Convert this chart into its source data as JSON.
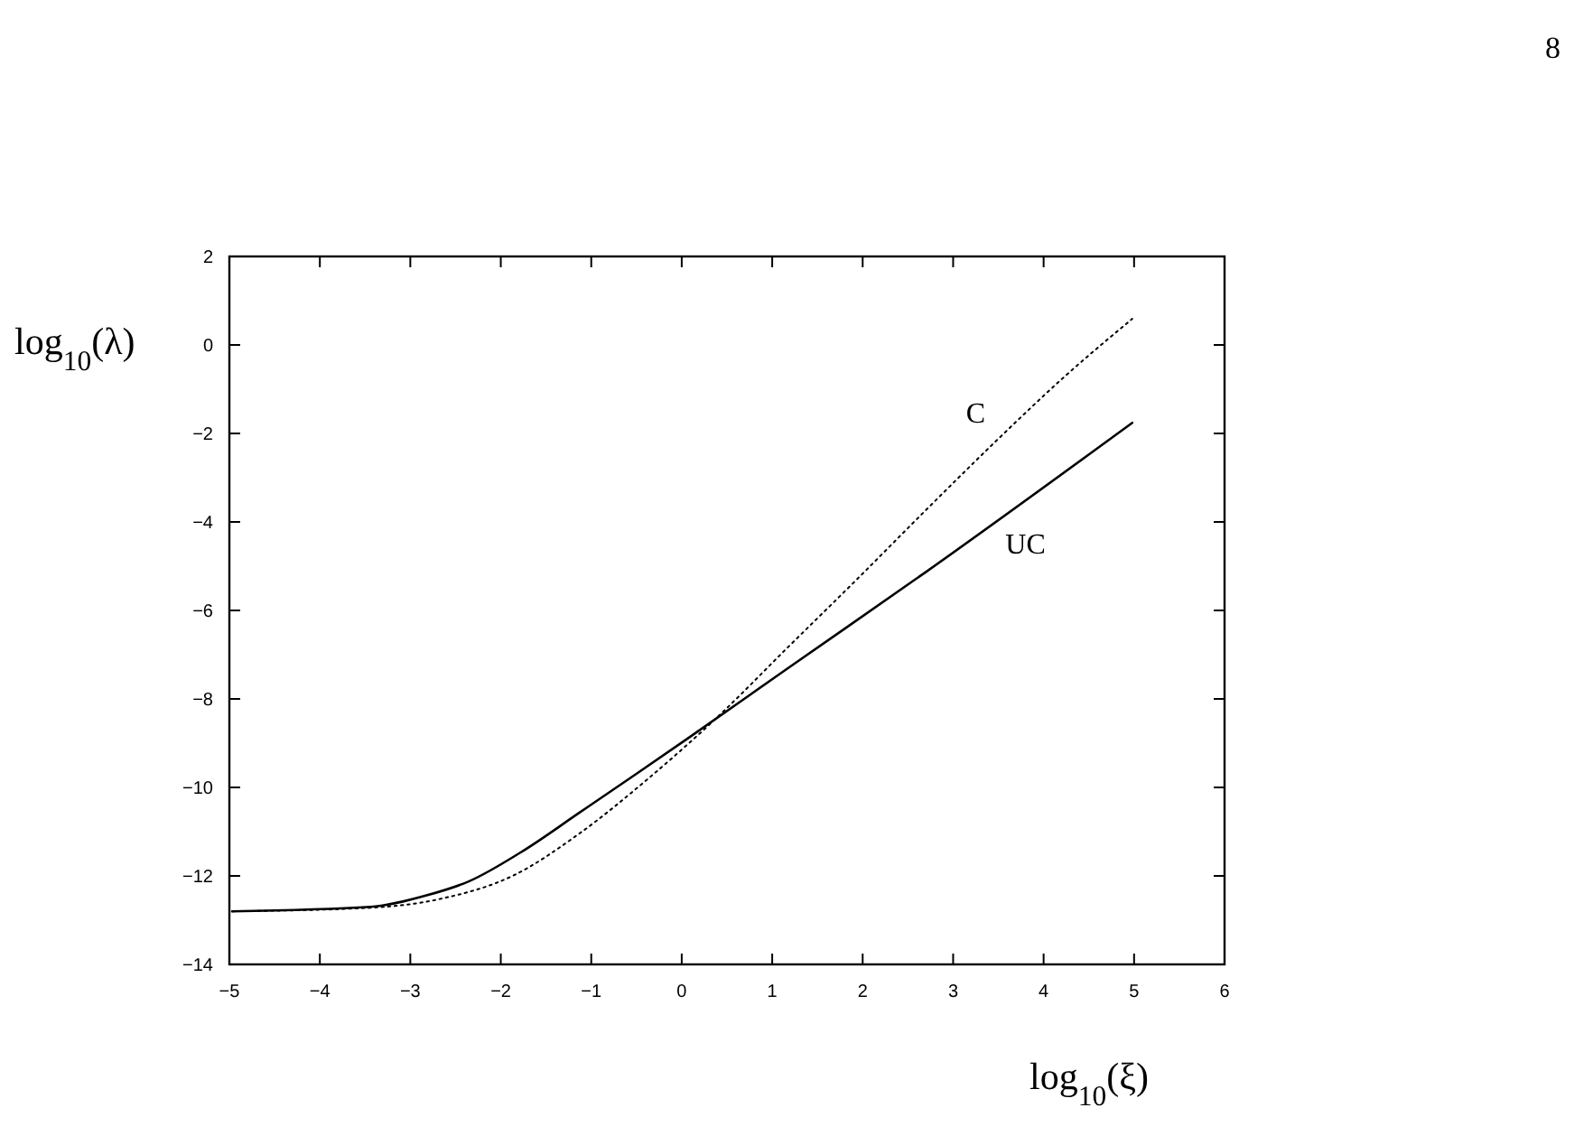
{
  "chart_data": {
    "type": "line",
    "xlabel": "log$_{10}$(ξ)",
    "ylabel": "log$_{10}$(λ)",
    "xlim": [
      -5,
      6
    ],
    "ylim": [
      -14,
      2
    ],
    "xticks": [
      -5,
      -4,
      -3,
      -2,
      -1,
      0,
      1,
      2,
      3,
      4,
      5,
      6
    ],
    "yticks": [
      -14,
      -12,
      -10,
      -8,
      -6,
      -4,
      -2,
      0,
      2
    ],
    "grid": false,
    "marker": "none",
    "series": [
      {
        "name": "UC",
        "color": "#000000",
        "line_style": "solid",
        "x": [
          -4.97,
          -3.44,
          -2.82,
          -2.36,
          -1.75,
          -1.13,
          -0.52,
          0.09,
          1.17,
          2.7,
          4.98
        ],
        "values": [
          -12.8,
          -12.7,
          -12.44,
          -12.13,
          -11.43,
          -10.57,
          -9.72,
          -8.86,
          -7.31,
          -5.13,
          -1.76
        ]
      },
      {
        "name": "C",
        "color": "#000000",
        "line_style": "dotted",
        "x": [
          -4.97,
          -3.44,
          -2.67,
          -1.85,
          -1.13,
          -0.37,
          0.4,
          1.17,
          1.94,
          2.7,
          3.47,
          4.24,
          4.98
        ],
        "values": [
          -12.8,
          -12.72,
          -12.52,
          -11.98,
          -11.04,
          -9.8,
          -8.4,
          -6.84,
          -5.29,
          -3.73,
          -2.18,
          -0.7,
          0.59
        ]
      }
    ],
    "annotations": [
      "8"
    ]
  }
}
